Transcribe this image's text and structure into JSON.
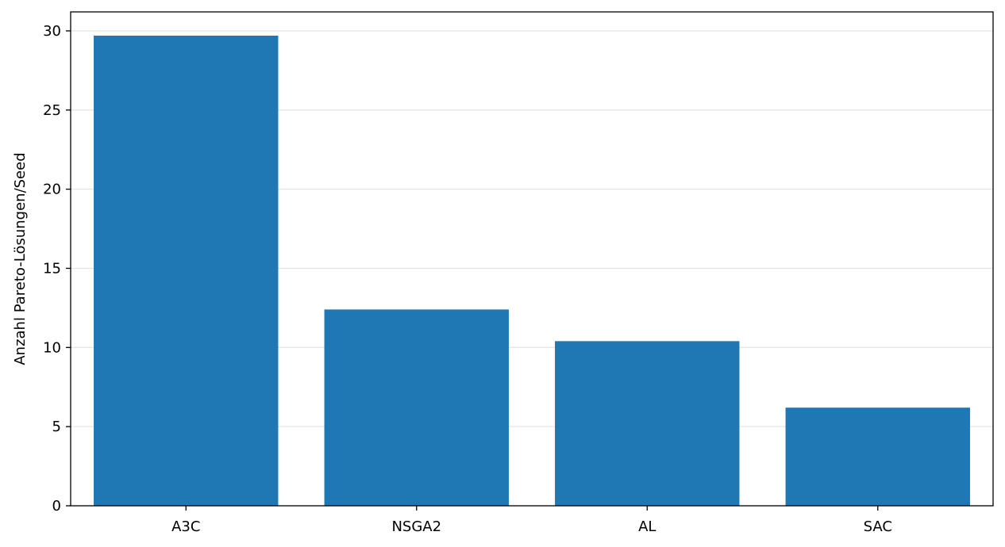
{
  "chart_data": {
    "type": "bar",
    "categories": [
      "A3C",
      "NSGA2",
      "AL",
      "SAC"
    ],
    "values": [
      29.7,
      12.4,
      10.4,
      6.2
    ],
    "title": "",
    "xlabel": "",
    "ylabel": "Anzahl Pareto-Lösungen/Seed",
    "ylim": [
      0,
      31.2
    ],
    "yticks": [
      0,
      5,
      10,
      15,
      20,
      25,
      30
    ],
    "grid": "horizontal",
    "bar_color": "#1f77b4",
    "grid_color": "#e5e5e5"
  }
}
